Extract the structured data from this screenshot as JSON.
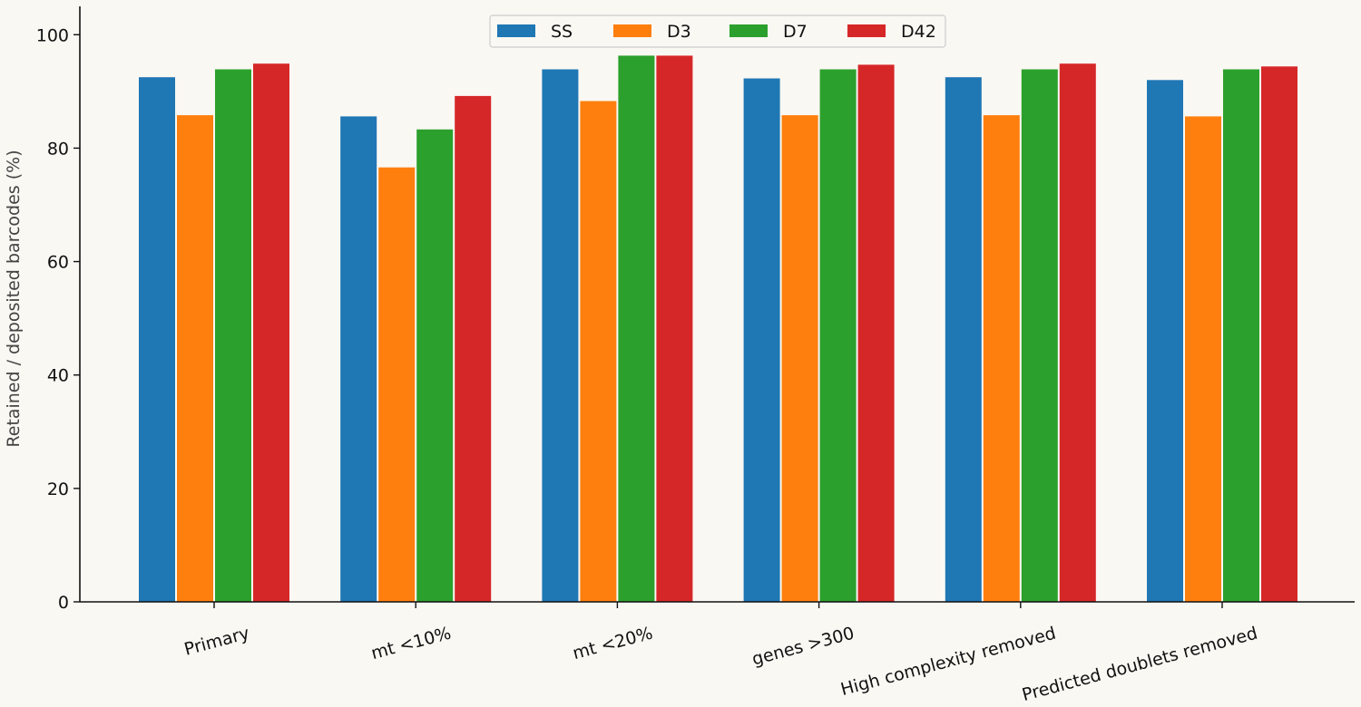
{
  "chart_data": {
    "type": "bar",
    "title": "",
    "xlabel": "",
    "ylabel": "Retained / deposited barcodes (%)",
    "ylim": [
      0,
      105
    ],
    "yticks": [
      0,
      20,
      40,
      60,
      80,
      100
    ],
    "grid": false,
    "legend_position": "top-center",
    "categories": [
      "Primary",
      "mt <10%",
      "mt <20%",
      "genes >300",
      "High complexity removed",
      "Predicted doublets removed"
    ],
    "series": [
      {
        "name": "SS",
        "color": "#1f77b4",
        "values": [
          92.5,
          85.6,
          93.9,
          92.3,
          92.5,
          92.0
        ]
      },
      {
        "name": "D3",
        "color": "#ff7f0e",
        "values": [
          85.8,
          76.6,
          88.3,
          85.8,
          85.8,
          85.6
        ]
      },
      {
        "name": "D7",
        "color": "#2ca02c",
        "values": [
          93.9,
          83.3,
          96.3,
          93.9,
          93.9,
          93.9
        ]
      },
      {
        "name": "D42",
        "color": "#d62728",
        "values": [
          94.9,
          89.2,
          96.3,
          94.7,
          94.9,
          94.4
        ]
      }
    ]
  }
}
